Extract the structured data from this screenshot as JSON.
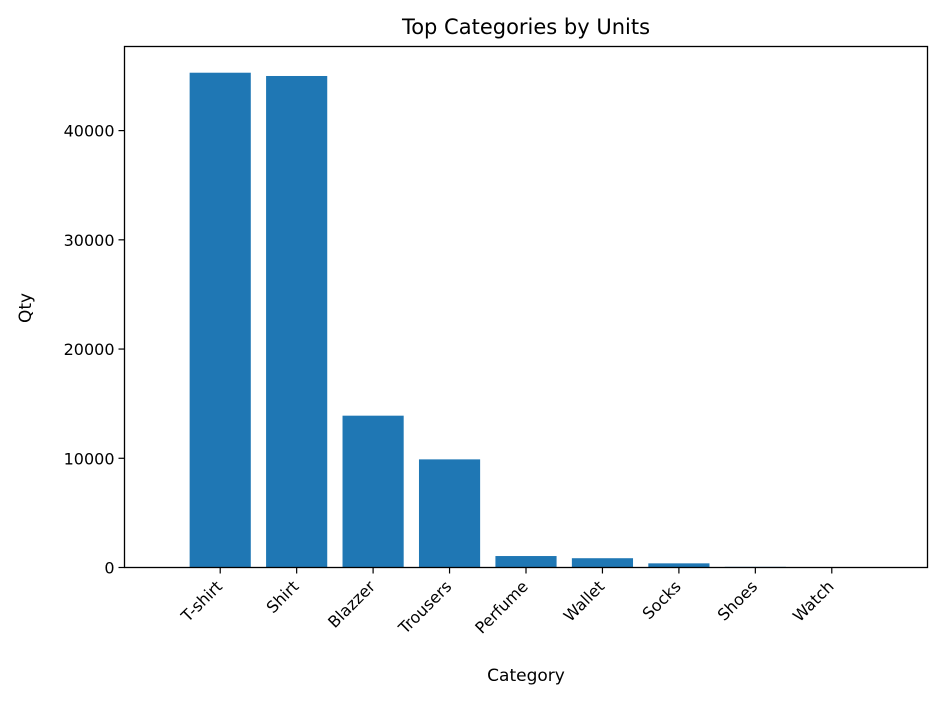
{
  "chart_data": {
    "type": "bar",
    "title": "Top Categories by Units",
    "xlabel": "Category",
    "ylabel": "Qty",
    "categories": [
      "T-shirt",
      "Shirt",
      "Blazzer",
      "Trousers",
      "Perfume",
      "Wallet",
      "Socks",
      "Shoes",
      "Watch"
    ],
    "values": [
      45300,
      45000,
      13900,
      9900,
      1050,
      850,
      380,
      60,
      30
    ],
    "ylim": [
      0,
      47700
    ],
    "yticks": [
      0,
      10000,
      20000,
      30000,
      40000
    ],
    "ytick_labels": [
      "0",
      "10000",
      "20000",
      "30000",
      "40000"
    ],
    "bar_color": "#1f77b4",
    "grid": false,
    "legend": false
  }
}
